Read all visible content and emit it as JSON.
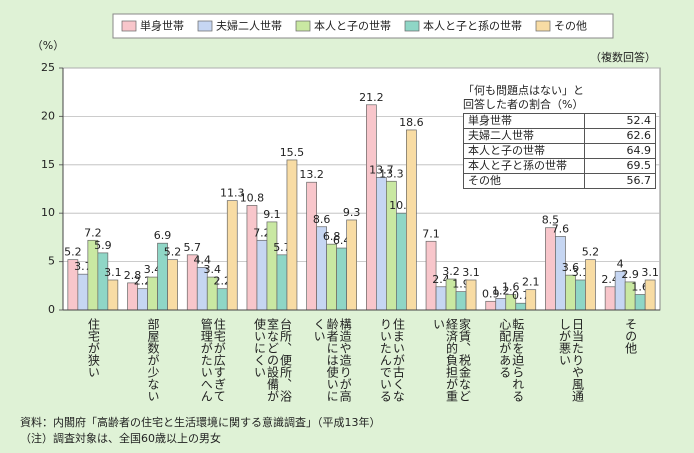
{
  "chart_data": {
    "type": "bar",
    "y_unit": "（%）",
    "annotation": "（複数回答）",
    "categories": [
      "住宅が狭い",
      "部屋数が少ない",
      "住宅が広すぎて管理がたいへん",
      "台所、便所、浴室などの設備が使いにくい",
      "構造や造りが高齢者には使いにくい",
      "住まいが古くなりいたんでいる",
      "家賃、税金など経済的負担が重い",
      "転居を迫られる心配がある",
      "日当たりや風通しが悪い",
      "その他"
    ],
    "series": [
      {
        "name": "単身世帯",
        "color": "#f8c6cb",
        "values": [
          5.2,
          2.8,
          5.7,
          10.8,
          13.2,
          21.2,
          7.1,
          0.9,
          8.5,
          2.4
        ]
      },
      {
        "name": "夫婦二人世帯",
        "color": "#c6d6f2",
        "values": [
          3.7,
          2.2,
          4.4,
          7.2,
          8.6,
          13.7,
          2.4,
          1.2,
          7.6,
          4.0
        ]
      },
      {
        "name": "本人と子の世帯",
        "color": "#c9e8a2",
        "values": [
          7.2,
          3.4,
          3.4,
          9.1,
          6.8,
          13.3,
          3.2,
          1.6,
          3.6,
          2.9
        ]
      },
      {
        "name": "本人と子と孫の世帯",
        "color": "#8fd6c6",
        "values": [
          5.9,
          6.9,
          2.2,
          5.7,
          6.4,
          10.0,
          1.9,
          0.7,
          3.1,
          1.6
        ],
        "value_labels": [
          "5.9",
          "6.9",
          "2.2",
          "5.7",
          "6.4",
          "10.0",
          "1.9",
          "0.7",
          "3.1",
          "1.6"
        ]
      },
      {
        "name": "その他",
        "color": "#f8dca4",
        "values": [
          3.1,
          5.2,
          11.3,
          15.5,
          9.3,
          18.6,
          3.1,
          2.1,
          5.2,
          3.1
        ]
      }
    ],
    "ylim": [
      0,
      25
    ],
    "yticks": [
      0,
      5,
      10,
      15,
      20,
      25
    ],
    "grid": true
  },
  "inset": {
    "title_lines": [
      "「何も問題点はない」と",
      "回答した者の割合（%）"
    ],
    "rows": [
      [
        "単身世帯",
        52.4
      ],
      [
        "夫婦二人世帯",
        62.6
      ],
      [
        "本人と子の世帯",
        64.9
      ],
      [
        "本人と子と孫の世帯",
        69.5
      ],
      [
        "その他",
        56.7
      ]
    ]
  },
  "notes": [
    "資料：内閣府「高齢者の住宅と生活環境に関する意識調査」（平成13年）",
    "（注）調査対象は、全国60歳以上の男女"
  ]
}
